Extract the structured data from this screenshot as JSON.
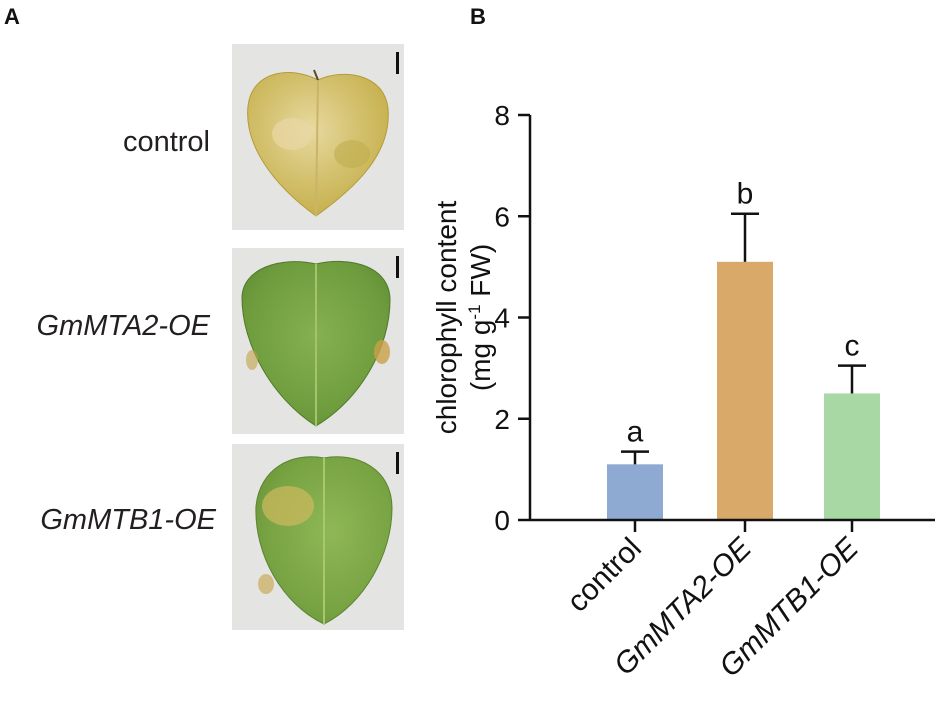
{
  "panels": {
    "a_label": "A",
    "b_label": "B"
  },
  "leaf_photos": [
    {
      "label": "control",
      "italic": false
    },
    {
      "label": "GmMTA2-OE",
      "italic": true
    },
    {
      "label": "GmMTB1-OE",
      "italic": true
    }
  ],
  "colors": {
    "control_bar": "#8eaad2",
    "mta2_bar": "#d9a96a",
    "mtb1_bar": "#a8d8a4",
    "yellow_leaf": "#d6c572",
    "green_leaf": "#7aa84a"
  },
  "chart_data": {
    "type": "bar",
    "categories": [
      "control",
      "GmMTA2-OE",
      "GmMTB1-OE"
    ],
    "values": [
      1.1,
      5.1,
      2.5
    ],
    "errors": [
      0.25,
      0.95,
      0.55
    ],
    "significance_letters": [
      "a",
      "b",
      "c"
    ],
    "ylabel_line1": "chlorophyll content",
    "ylabel_line2": "(mg g",
    "ylabel_sup": "-1",
    "ylabel_end": " FW)",
    "ylim": [
      0,
      8
    ],
    "yticks": [
      "0",
      "2",
      "4",
      "6",
      "8"
    ],
    "grid": false
  }
}
